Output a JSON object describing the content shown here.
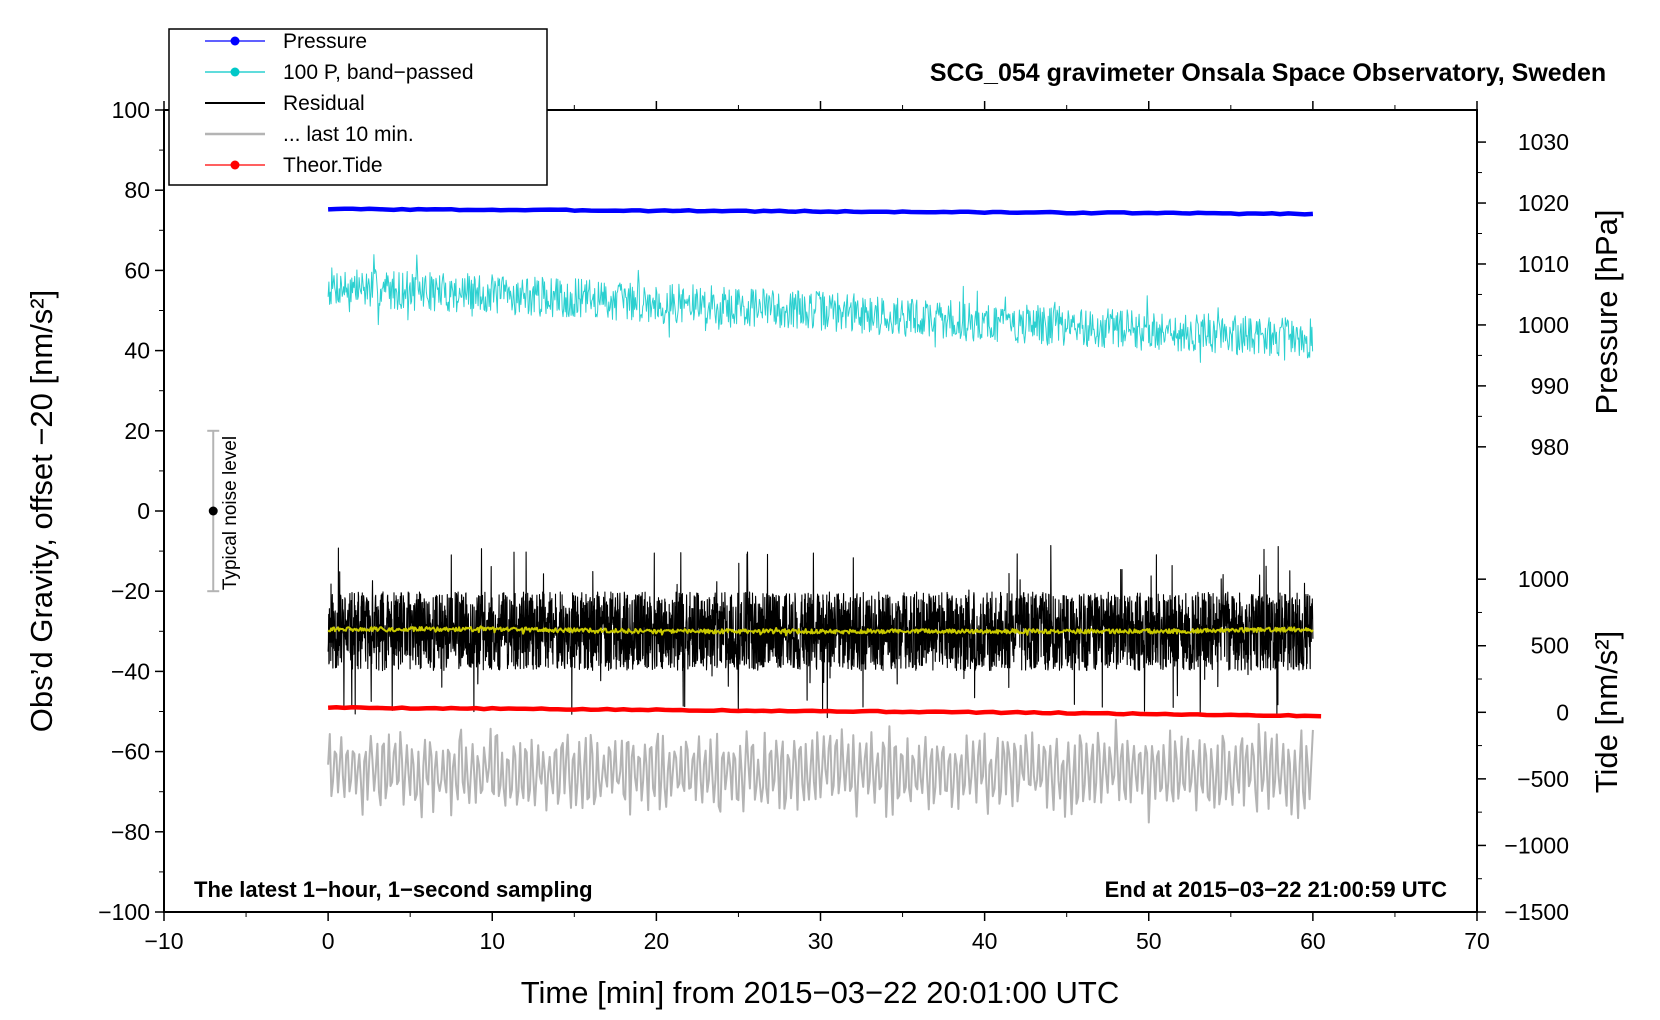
{
  "chart_data": {
    "type": "line",
    "title": "SCG_054 gravimeter Onsala Space Observatory, Sweden",
    "xlabel": "Time [min] from 2015−03−22 20:01:00 UTC",
    "ylabel_left": "Obs’d Gravity, offset −20 [nm/s²]",
    "ylabel_right_top": "Pressure [hPa]",
    "ylabel_right_bottom": "Tide [nm/s²]",
    "xlim": [
      -10,
      70
    ],
    "ylim": [
      -100,
      100
    ],
    "x_ticks": [
      -10,
      0,
      10,
      20,
      30,
      40,
      50,
      60,
      70
    ],
    "x_tick_labels": [
      "−10",
      "0",
      "10",
      "20",
      "30",
      "40",
      "50",
      "60",
      "70"
    ],
    "y_ticks": [
      100,
      80,
      60,
      40,
      20,
      0,
      -20,
      -40,
      -60,
      -80,
      -100
    ],
    "y_tick_labels": [
      "100",
      "80",
      "60",
      "40",
      "20",
      "0",
      "−20",
      "−40",
      "−60",
      "−80",
      "−100"
    ],
    "pressure_axis": {
      "ticks": [
        1030,
        1020,
        1010,
        1000,
        990,
        980
      ],
      "tick_labels": [
        "1030",
        "1020",
        "1010",
        "1000",
        "990",
        "980"
      ],
      "maps_to_gravity": [
        [
          1030,
          92
        ],
        [
          980,
          16
        ]
      ]
    },
    "tide_axis": {
      "ticks": [
        1000,
        500,
        0,
        -500,
        -1000,
        -1500
      ],
      "tick_labels": [
        "1000",
        "500",
        "0",
        "−500",
        "−1000",
        "−1500"
      ],
      "maps_to_gravity": [
        [
          1000,
          -17
        ],
        [
          -1500,
          -100
        ]
      ]
    },
    "legend": [
      {
        "label": "Pressure",
        "color": "#0000ff",
        "marker": true
      },
      {
        "label": "100 P, band−passed",
        "color": "#00c8c8",
        "marker": true
      },
      {
        "label": "Residual",
        "color": "#000000",
        "marker": false
      },
      {
        "label": "... last 10 min.",
        "color": "#b4b4b4",
        "marker": false
      },
      {
        "label": "Theor.Tide",
        "color": "#ff0000",
        "marker": true
      }
    ],
    "legend_position": "top-left",
    "series": [
      {
        "name": "Pressure",
        "color": "#0000ff",
        "x": [
          0,
          10,
          20,
          30,
          40,
          50,
          60
        ],
        "y": [
          75.3,
          75.1,
          74.9,
          74.7,
          74.5,
          74.3,
          74.1
        ]
      },
      {
        "name": "100 P, band-passed",
        "color": "#2bd0d0",
        "x": [
          0,
          10,
          20,
          30,
          40,
          50,
          60
        ],
        "y": [
          56,
          54,
          52,
          50,
          47,
          45,
          43
        ],
        "noise_amplitude": 9
      },
      {
        "name": "Residual",
        "color": "#000000",
        "x": [
          0,
          10,
          20,
          30,
          40,
          50,
          60
        ],
        "y": [
          -30,
          -30,
          -30,
          -30,
          -30,
          -30,
          -30
        ],
        "noise_amplitude": 14
      },
      {
        "name": "Residual smoothed",
        "color": "#c8c800",
        "x": [
          0,
          10,
          20,
          30,
          40,
          50,
          60
        ],
        "y": [
          -29.5,
          -29.5,
          -30,
          -30,
          -30,
          -30,
          -29.5
        ],
        "noise_amplitude": 1
      },
      {
        "name": "... last 10 min.",
        "color": "#b4b4b4",
        "x": [
          0,
          10,
          20,
          30,
          40,
          50,
          60
        ],
        "y": [
          -65,
          -65,
          -65,
          -65,
          -65,
          -65,
          -65
        ],
        "noise_amplitude": 10
      },
      {
        "name": "Theor.Tide",
        "color": "#ff0000",
        "x": [
          0,
          10,
          20,
          30,
          40,
          50,
          60
        ],
        "y": [
          -49,
          -49.3,
          -49.6,
          -49.9,
          -50.2,
          -50.6,
          -51.1
        ]
      }
    ],
    "noise_bar": {
      "label": "Typical noise level",
      "x": -7,
      "center": 0,
      "low": -20,
      "high": 20
    },
    "annotations": {
      "bottom_left": "The latest 1−hour, 1−second sampling",
      "bottom_right": "End at 2015−03−22 21:00:59 UTC"
    }
  }
}
